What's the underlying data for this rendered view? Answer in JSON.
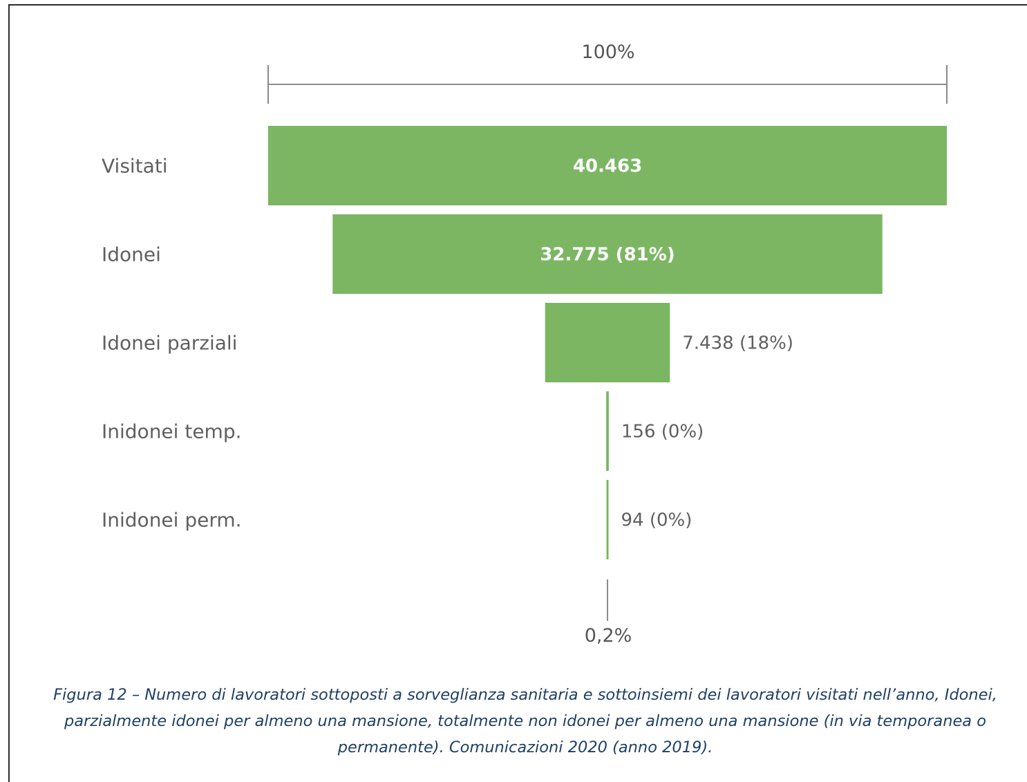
{
  "chart_data": {
    "type": "funnel",
    "color": "#7cb663",
    "scale_top_label": "100%",
    "scale_bottom_label": "0,2%",
    "categories": [
      "Visitati",
      "Idonei",
      "Idonei parziali",
      "Inidonei temp.",
      "Inidonei perm."
    ],
    "values": [
      40463,
      32775,
      7438,
      156,
      94
    ],
    "value_labels": [
      "40.463",
      "32.775 (81%)",
      "7.438 (18%)",
      "156 (0%)",
      "94 (0%)"
    ]
  },
  "caption": "Figura 12 – Numero di lavoratori sottoposti a sorveglianza sanitaria e sottoinsiemi dei lavoratori visitati nell’anno, Idonei, parzialmente idonei per almeno una mansione, totalmente non idonei per almeno una mansione (in via temporanea o permanente). Comunicazioni 2020 (anno 2019)."
}
